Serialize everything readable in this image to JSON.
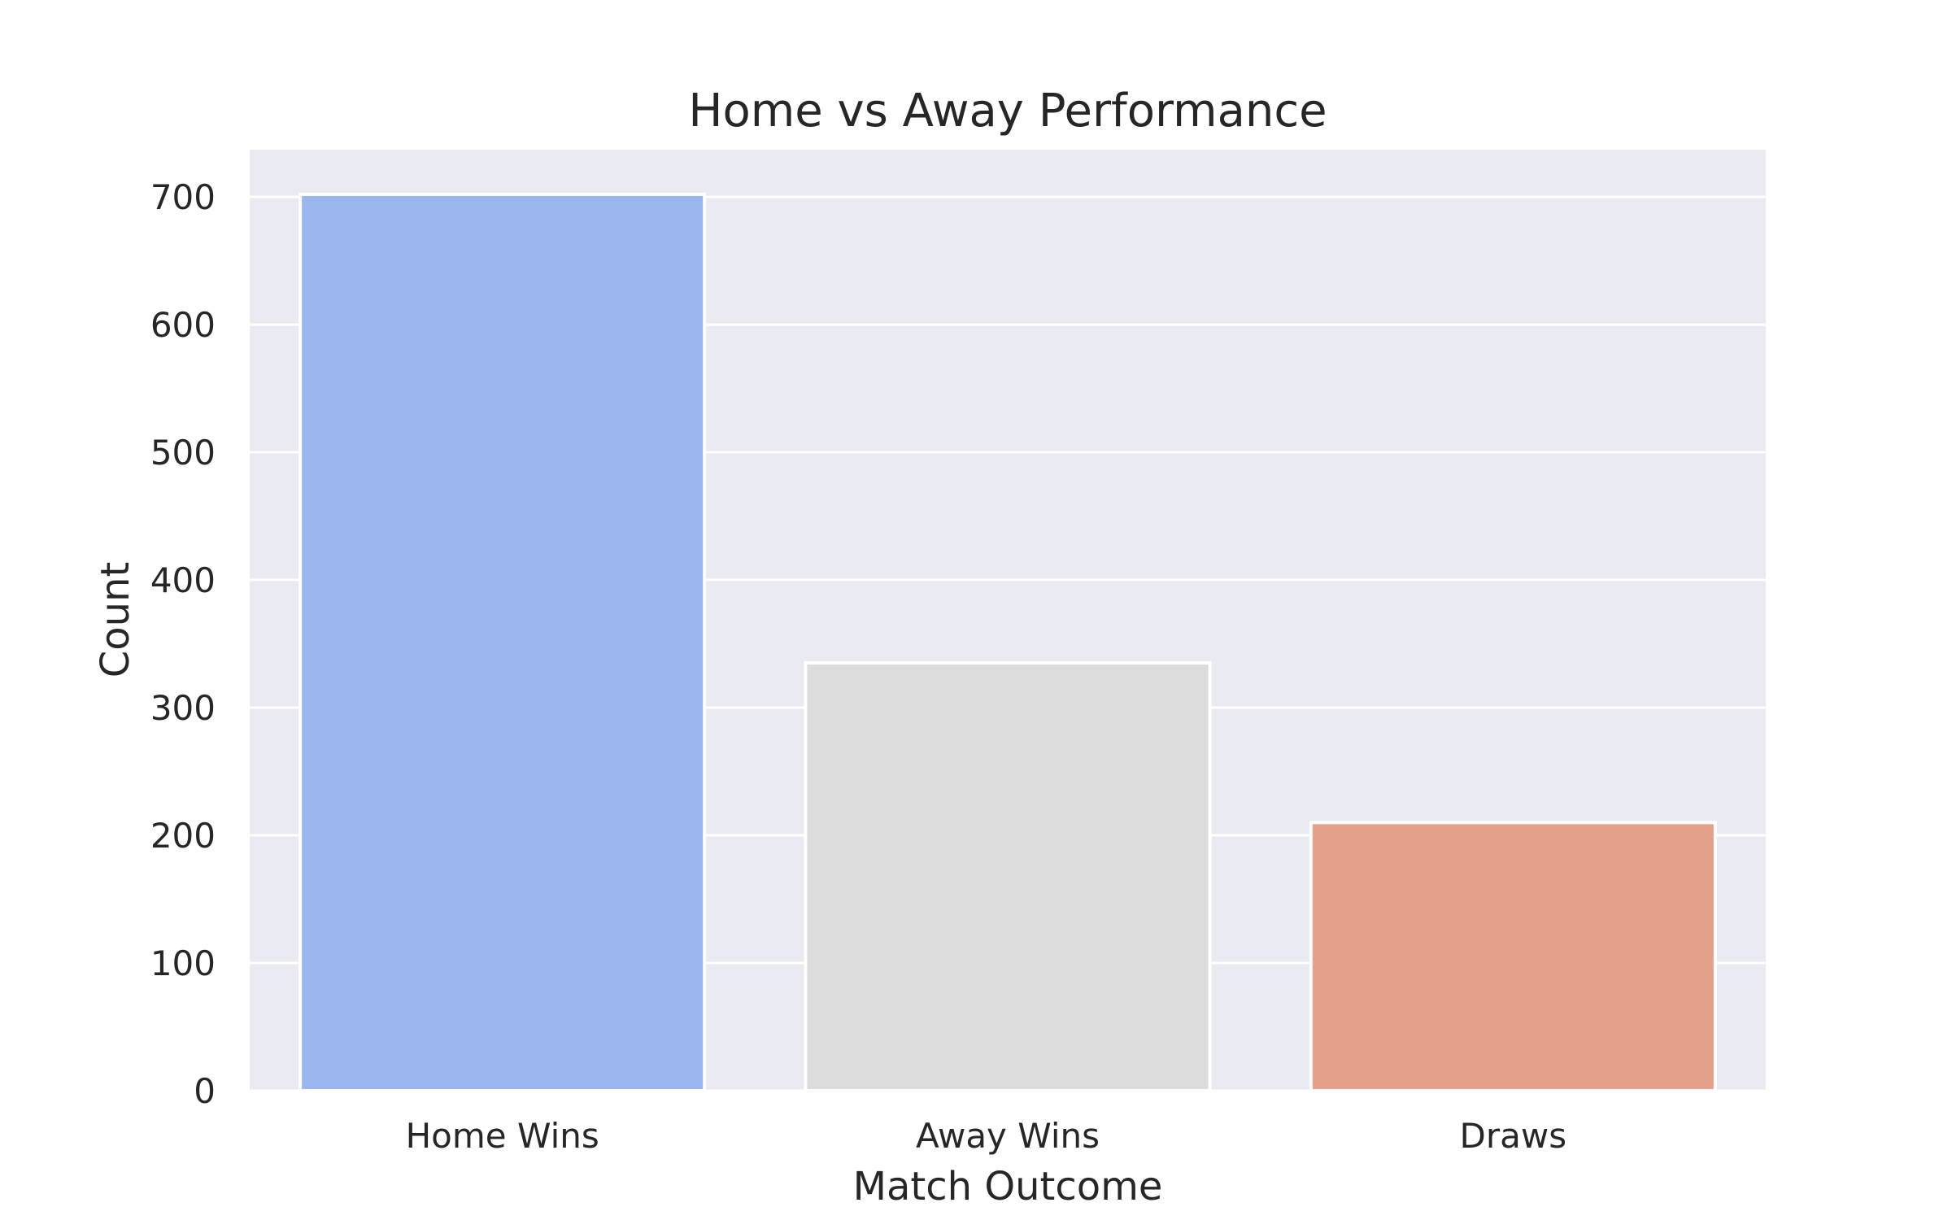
{
  "chart_data": {
    "type": "bar",
    "title": "Home vs Away Performance",
    "xlabel": "Match Outcome",
    "ylabel": "Count",
    "categories": [
      "Home Wins",
      "Away Wins",
      "Draws"
    ],
    "values": [
      702,
      335,
      210
    ],
    "ylim": [
      0,
      737
    ],
    "yticks": [
      0,
      100,
      200,
      300,
      400,
      500,
      600,
      700
    ],
    "grid": true,
    "legend": "none",
    "colors": [
      "#9BB5EE",
      "#DCDCDC",
      "#E4A08A"
    ],
    "background_color": "#EAEAF2",
    "grid_color": "#FFFFFF"
  }
}
